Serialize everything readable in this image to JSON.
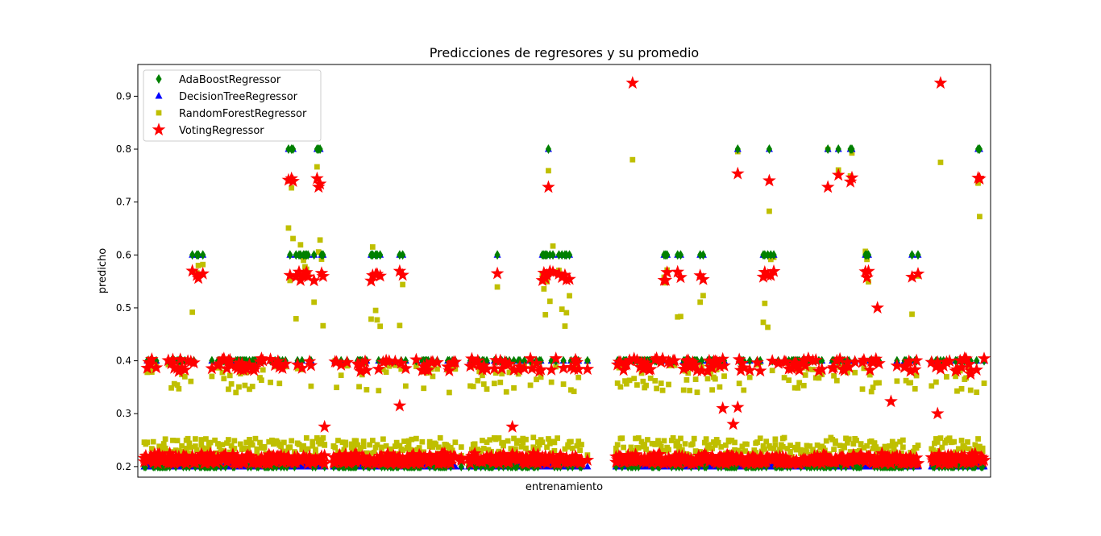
{
  "chart_data": {
    "type": "scatter",
    "title": "Predicciones de regresores y su promedio",
    "xlabel": "entrenamiento",
    "ylabel": "predicho",
    "ylim": [
      0.18,
      0.96
    ],
    "yticks": [
      "0.2",
      "0.3",
      "0.4",
      "0.5",
      "0.6",
      "0.7",
      "0.8",
      "0.9"
    ],
    "legend_position": "top-left",
    "grid": false,
    "series": [
      {
        "name": "AdaBoostRegressor",
        "marker": "diamond",
        "color": "#008000",
        "values_description": "Discrete levels",
        "levels": [
          0.2,
          0.4,
          0.6,
          0.8
        ]
      },
      {
        "name": "DecisionTreeRegressor",
        "marker": "triangle",
        "color": "#0000ff",
        "levels": [
          0.2,
          0.4,
          0.6,
          0.8
        ]
      },
      {
        "name": "RandomForestRegressor",
        "marker": "square",
        "color": "#bfbf00",
        "typical_range": [
          0.2,
          0.65
        ],
        "extreme_values": [
          0.78,
          0.775
        ]
      },
      {
        "name": "VotingRegressor",
        "marker": "star",
        "color": "#ff0000",
        "typical_range": [
          0.2,
          0.75
        ],
        "extreme_values": [
          0.925,
          0.925
        ]
      }
    ]
  }
}
